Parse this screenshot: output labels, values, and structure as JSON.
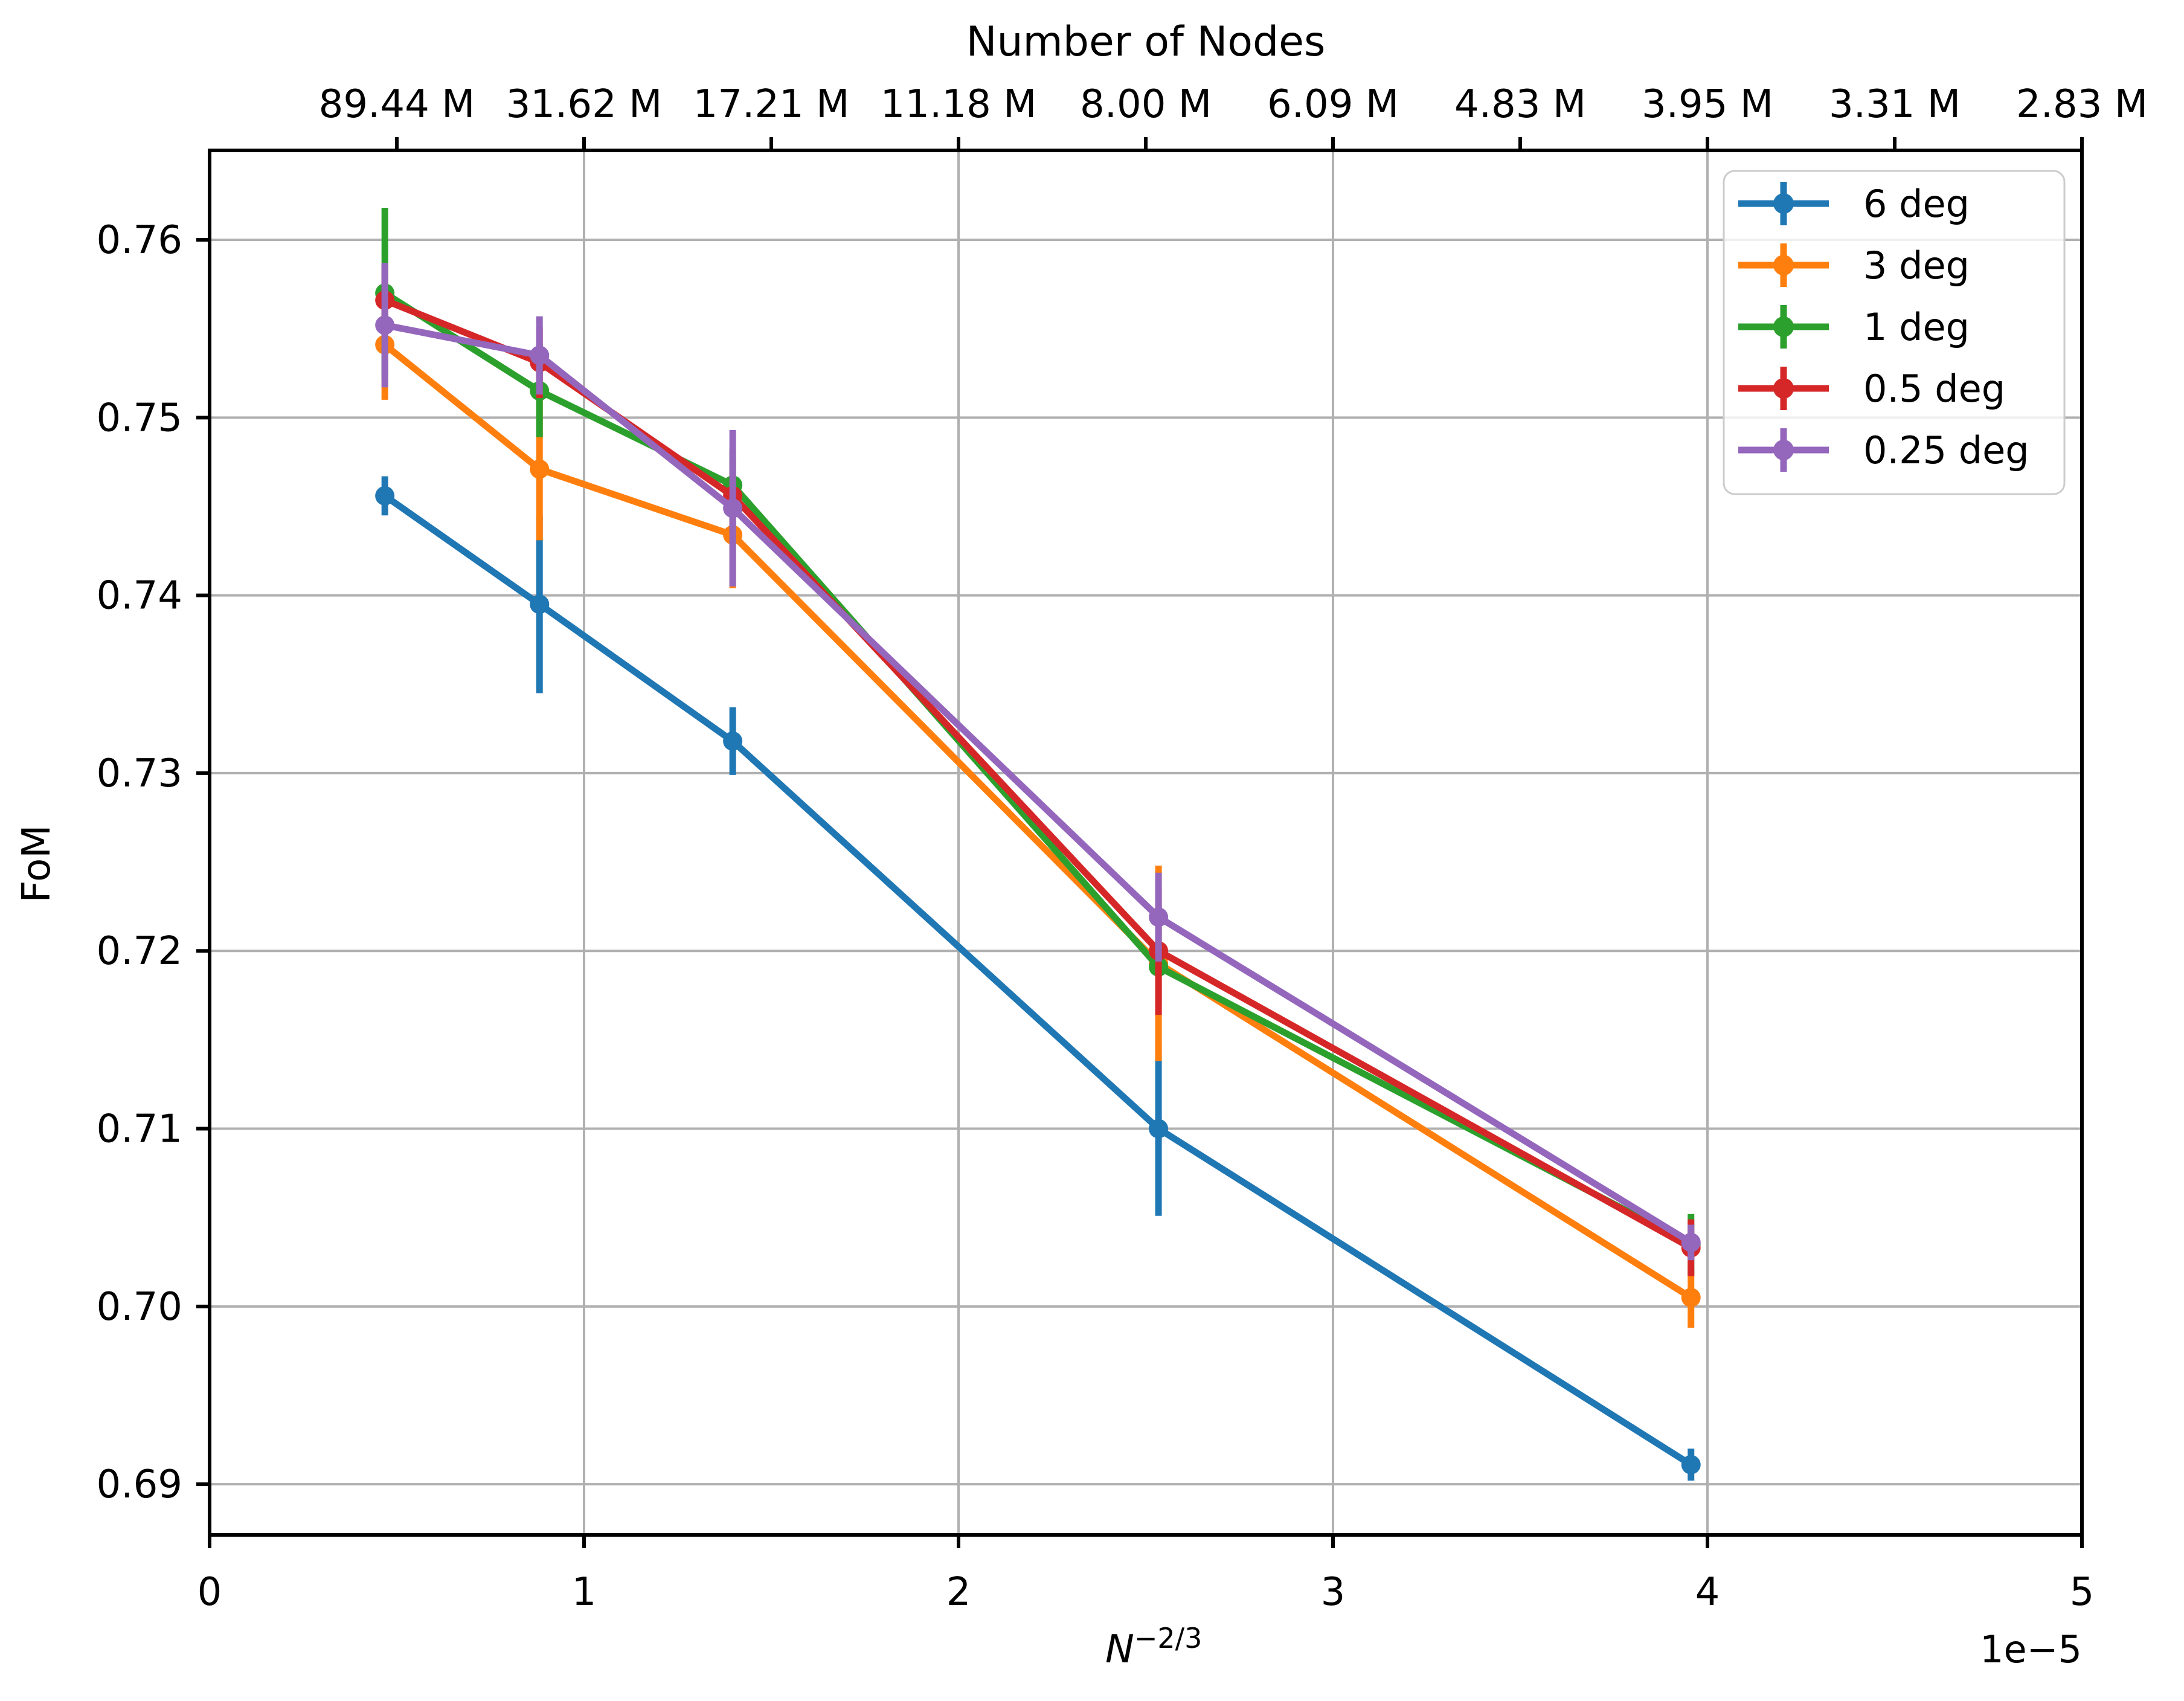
{
  "figure": {
    "title_top": "Number of Nodes",
    "ylabel": "FoM",
    "xlabel_base": "N",
    "xlabel_exponent": "−2/3",
    "offset_text": "1e−5",
    "background_color": "#ffffff",
    "spine_color": "#000000",
    "grid_color": "#b0b0b0",
    "legend_border_color": "#cccccc"
  },
  "chart_data": {
    "type": "line",
    "title": "Number of Nodes",
    "xlabel": "N^−2/3",
    "ylabel": "FoM",
    "x_units_note": "x values in units of 1e−5 (axis offset text 1e−5)",
    "xlim": [
      0,
      5
    ],
    "ylim": [
      0.68715,
      0.76503
    ],
    "grid": true,
    "x": [
      0.468,
      0.881,
      1.397,
      2.534,
      3.956
    ],
    "x_ticks_bottom": {
      "values": [
        0,
        1,
        2,
        3,
        4,
        5
      ],
      "labels": [
        "0",
        "1",
        "2",
        "3",
        "4",
        "5"
      ]
    },
    "y_ticks": {
      "values": [
        0.69,
        0.7,
        0.71,
        0.72,
        0.73,
        0.74,
        0.75,
        0.76
      ],
      "labels": [
        "0.69",
        "0.70",
        "0.71",
        "0.72",
        "0.73",
        "0.74",
        "0.75",
        "0.76"
      ]
    },
    "top_axis": {
      "label": "Number of Nodes",
      "tick_positions": [
        0.5,
        1.0,
        1.5,
        2.0,
        2.5,
        3.0,
        3.5,
        4.0,
        4.5,
        5.0
      ],
      "tick_labels": [
        "89.44 M",
        "31.62 M",
        "17.21 M",
        "11.18 M",
        "8.00 M",
        "6.09 M",
        "4.83 M",
        "3.95 M",
        "3.31 M",
        "2.83 M"
      ]
    },
    "series": [
      {
        "name": "6 deg",
        "color": "#1f77b4",
        "y": [
          0.7456,
          0.7395,
          0.7318,
          0.71,
          0.6911
        ],
        "yerr": [
          0.0011,
          0.005,
          0.0019,
          0.0049,
          0.0009
        ]
      },
      {
        "name": "3 deg",
        "color": "#ff7f0e",
        "y": [
          0.7541,
          0.7471,
          0.7434,
          0.7193,
          0.7005
        ],
        "yerr": [
          0.0031,
          0.004,
          0.003,
          0.0055,
          0.0017
        ]
      },
      {
        "name": "1 deg",
        "color": "#2ca02c",
        "y": [
          0.757,
          0.7515,
          0.7462,
          0.7191,
          0.7035
        ],
        "yerr": [
          0.0048,
          0.0026,
          0.002,
          0.0021,
          0.0017
        ]
      },
      {
        "name": "0.5 deg",
        "color": "#d62728",
        "y": [
          0.7566,
          0.7531,
          0.7456,
          0.72,
          0.7033
        ],
        "yerr": [
          0.002,
          0.002,
          0.002,
          0.0036,
          0.0016
        ]
      },
      {
        "name": "0.25 deg",
        "color": "#9467bd",
        "y": [
          0.7552,
          0.7535,
          0.7449,
          0.7219,
          0.7036
        ],
        "yerr": [
          0.0035,
          0.0022,
          0.0044,
          0.0025,
          0.001
        ]
      }
    ],
    "legend": {
      "position": "upper right",
      "entries": [
        "6 deg",
        "3 deg",
        "1 deg",
        "0.5 deg",
        "0.25 deg"
      ]
    }
  }
}
